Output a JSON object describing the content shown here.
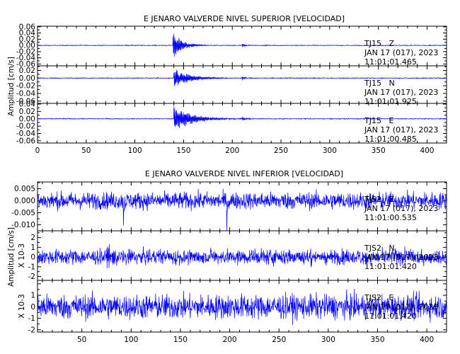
{
  "colors": {
    "trace": "#0000ff",
    "axis": "#000000",
    "background": "#ffffff"
  },
  "chart_data": [
    {
      "type": "line",
      "title": "E JENARO VALVERDE NIVEL SUPERIOR [VELOCIDAD]",
      "ylabel": "Amplitud [cm/s]",
      "xlabel": "",
      "xlim": [
        0,
        420
      ],
      "x_ticks": [
        "0",
        "50",
        "100",
        "150",
        "200",
        "250",
        "300",
        "350",
        "400"
      ],
      "grid": false,
      "panels": [
        {
          "channel_label": "TJ15   Z",
          "date_label": "JAN 17 (017), 2023",
          "time_label": "11:01:01.465",
          "ylim": [
            -0.066,
            0.062
          ],
          "y_ticks": [
            "0.06",
            "0.04",
            "0.02",
            "0.00",
            "-0.02",
            "-0.04",
            "-0.06"
          ],
          "y_exponent": "",
          "trace": {
            "noise": 0.0008,
            "events": [
              {
                "t": 139,
                "amp": 0.055,
                "decay": 9
              },
              {
                "t": 210,
                "amp": 0.008,
                "decay": 3
              }
            ]
          }
        },
        {
          "channel_label": "TJ15   N",
          "date_label": "JAN 17 (017), 2023",
          "time_label": "11:01:01.925",
          "ylim": [
            -0.066,
            0.032
          ],
          "y_ticks": [
            "0.02",
            "0.00",
            "-0.02",
            "-0.04",
            "-0.06"
          ],
          "y_exponent": "",
          "trace": {
            "noise": 0.0008,
            "events": [
              {
                "t": 140,
                "amp": 0.028,
                "decay": 16
              },
              {
                "t": 210,
                "amp": 0.006,
                "decay": 4
              }
            ]
          }
        },
        {
          "channel_label": "TJ15   E",
          "date_label": "JAN 17 (017), 2023",
          "time_label": "11:01:00.485",
          "ylim": [
            -0.066,
            0.042
          ],
          "y_ticks": [
            "0.04",
            "0.02",
            "0.00",
            "-0.02",
            "-0.04",
            "-0.06"
          ],
          "y_exponent": "",
          "trace": {
            "noise": 0.0008,
            "events": [
              {
                "t": 140,
                "amp": 0.04,
                "decay": 18
              },
              {
                "t": 210,
                "amp": 0.008,
                "decay": 4
              }
            ]
          }
        }
      ],
      "x_tick_values": [
        0,
        50,
        100,
        150,
        200,
        250,
        300,
        350,
        400
      ]
    },
    {
      "type": "line",
      "title": "E JENARO VALVERDE NIVEL INFERIOR [VELOCIDAD]",
      "ylabel": "Amplitud [cm/s]",
      "xlabel": "",
      "xlim": [
        5,
        420
      ],
      "x_ticks": [
        "50",
        "100",
        "150",
        "200",
        "250",
        "300",
        "350",
        "400"
      ],
      "grid": false,
      "panels": [
        {
          "channel_label": "TJS2   Z",
          "date_label": "JAN 17 (017), 2023",
          "time_label": "11:01:00.535",
          "ylim": [
            -0.0125,
            0.0078
          ],
          "y_ticks": [
            "0.005",
            "0.000",
            "-0.005",
            "-0.010"
          ],
          "y_exponent": "",
          "trace": {
            "noise": 0.0025,
            "events": [
              {
                "t": 92,
                "amp": -0.011,
                "decay": 0.6
              },
              {
                "t": 197,
                "amp": -0.009,
                "decay": 0.6
              }
            ]
          }
        },
        {
          "channel_label": "TJS2   N",
          "date_label": "JAN 17 (017), 2023",
          "time_label": "11:01:01.420",
          "ylim": [
            -2.4,
            2.7
          ],
          "y_ticks": [
            "2",
            "1",
            "0",
            "-1",
            "-2"
          ],
          "y_exponent": "X 10-3",
          "trace": {
            "noise": 0.55,
            "events": [
              {
                "t": 76,
                "amp": 2.5,
                "decay": 3
              }
            ]
          }
        },
        {
          "channel_label": "TJS2   E",
          "date_label": "JAN 17 (017), 2023",
          "time_label": "11:01:01.420",
          "ylim": [
            -2.2,
            2.3
          ],
          "y_ticks": [
            "1",
            "0",
            "-1",
            "-2"
          ],
          "y_exponent": "X 10-3",
          "trace": {
            "noise": 0.75,
            "events": []
          }
        }
      ],
      "x_tick_values": [
        50,
        100,
        150,
        200,
        250,
        300,
        350,
        400
      ]
    }
  ]
}
